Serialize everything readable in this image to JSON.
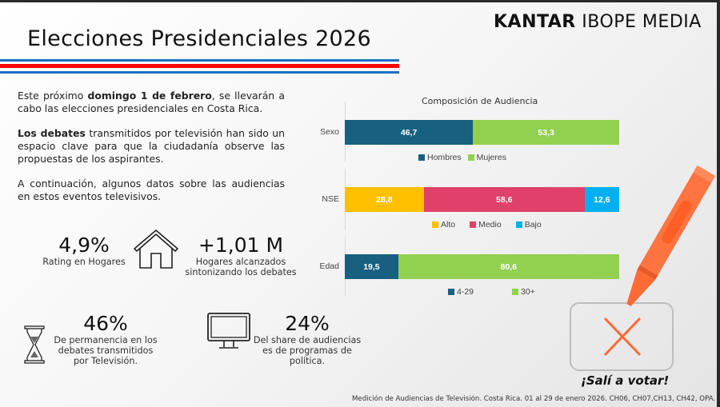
{
  "header": {
    "title": "Elecciones Presidenciales 2026",
    "logo_bold": "KANTAR",
    "logo_light": "IBOPE MEDIA"
  },
  "intro": {
    "p1_pre": "Este próximo ",
    "p1_bold": "domingo 1 de febrero",
    "p1_post": ", se llevarán a cabo las elecciones presidenciales en Costa Rica.",
    "p2_bold": "Los debates",
    "p2_post": " transmitidos por televisión han sido un espacio clave para que la ciudadanía observe las propuestas de los aspirantes.",
    "p3": "A continuación, algunos datos sobre las audiencias en estos eventos televisivos."
  },
  "stats": {
    "rating": {
      "value": "4,9%",
      "label": "Rating en Hogares"
    },
    "hogares": {
      "value": "+1,01 M",
      "label": "Hogares alcanzados sintonizando los debates"
    },
    "permanencia": {
      "value": "46%",
      "label": "De permanencia en los debates transmitidos por Televisión."
    },
    "share": {
      "value": "24%",
      "label": "Del share de audiencias es de programas de política."
    }
  },
  "icons": {
    "house": "house-icon",
    "hourglass": "hourglass-icon",
    "tv": "tv-monitor-icon",
    "crayon": "crayon-icon",
    "ballot": "ballot-x-icon"
  },
  "chart_data": {
    "type": "bar",
    "orientation": "horizontal-stacked-100",
    "title": "Composición de Audiencia",
    "groups": [
      {
        "category": "Sexo",
        "segments": [
          {
            "name": "Hombres",
            "value": 46.7,
            "label": "46,7",
            "color": "#17607f"
          },
          {
            "name": "Mujeres",
            "value": 53.3,
            "label": "53,3",
            "color": "#92d050"
          }
        ]
      },
      {
        "category": "NSE",
        "segments": [
          {
            "name": "Alto",
            "value": 28.8,
            "label": "28,8",
            "color": "#ffc000"
          },
          {
            "name": "Medio",
            "value": 58.6,
            "label": "58,6",
            "color": "#e0416a"
          },
          {
            "name": "Bajo",
            "value": 12.6,
            "label": "12,6",
            "color": "#00b0f0"
          }
        ]
      },
      {
        "category": "Edad",
        "segments": [
          {
            "name": "4-29",
            "value": 19.5,
            "label": "19,5",
            "color": "#17607f"
          },
          {
            "name": "30+",
            "value": 80.6,
            "label": "80,6",
            "color": "#92d050"
          }
        ]
      }
    ],
    "xlim": [
      0,
      100
    ],
    "grid": false,
    "legend_placement": "below-each-bar"
  },
  "cta": {
    "text": "¡Salí a votar!"
  },
  "footer": {
    "text": "Medición de Audiencias de Televisión. Costa Rica. 01 al 29 de enero 2026. CH06, CH07,CH13, CH42, OPA."
  },
  "colors": {
    "crayon": "#ff6a35",
    "stripe_blue": "#1a6fc4",
    "stripe_red": "#ff0000"
  }
}
